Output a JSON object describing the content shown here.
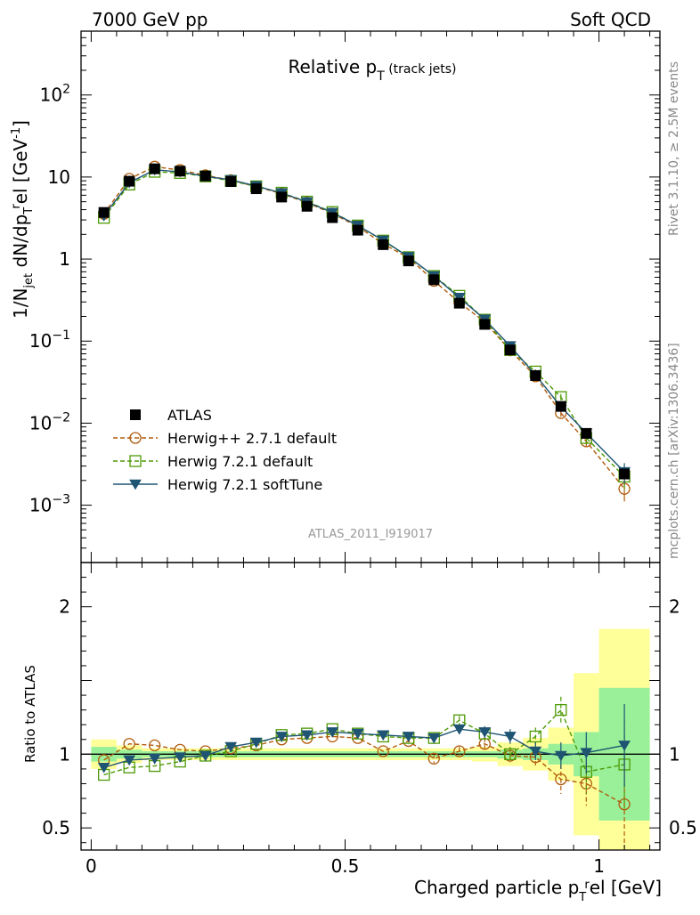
{
  "header": {
    "left": "7000 GeV pp",
    "right": "Soft QCD"
  },
  "side": {
    "rivet": "Rivet 3.1.10, ≥ 2.5M events",
    "mcplots": "mcplots.cern.ch [arXiv:1306.3436]"
  },
  "chart_data": {
    "type": "scatter",
    "title": "Relative p_T (track jets)",
    "analysis_id": "ATLAS_2011_I919017",
    "xlabel": "Charged particle p_T^rel [GeV]",
    "ylabel": "1/N_jet dN/dp_T^rel [GeV^-1]",
    "ratio_ylabel": "Ratio to ATLAS",
    "xlim": [
      -0.02,
      1.12
    ],
    "ylim_log": [
      0.0002,
      600
    ],
    "ratio_ylim": [
      0.35,
      2.3
    ],
    "x_ticks": [
      "0",
      "0.5",
      "1"
    ],
    "x_tick_values": [
      0,
      0.5,
      1
    ],
    "ratio_ticks": [
      "0.5",
      "1",
      "2"
    ],
    "ratio_tick_values": [
      0.5,
      1,
      2
    ],
    "y_ticks_log": [
      {
        "value": 0.001,
        "base": "10",
        "exp": "−3"
      },
      {
        "value": 0.01,
        "base": "10",
        "exp": "−2"
      },
      {
        "value": 0.1,
        "base": "10",
        "exp": "−1"
      },
      {
        "value": 1,
        "base": "1",
        "exp": ""
      },
      {
        "value": 10,
        "base": "10",
        "exp": ""
      },
      {
        "value": 100,
        "base": "10",
        "exp": "2"
      }
    ],
    "x": [
      0.025,
      0.075,
      0.125,
      0.175,
      0.225,
      0.275,
      0.325,
      0.375,
      0.425,
      0.475,
      0.525,
      0.575,
      0.625,
      0.675,
      0.725,
      0.775,
      0.825,
      0.875,
      0.925,
      0.975,
      1.05
    ],
    "x_edges": [
      0,
      0.05,
      0.1,
      0.15,
      0.2,
      0.25,
      0.3,
      0.35,
      0.4,
      0.45,
      0.5,
      0.55,
      0.6,
      0.65,
      0.7,
      0.75,
      0.8,
      0.85,
      0.9,
      0.95,
      1.0,
      1.1
    ],
    "data": {
      "name": "ATLAS",
      "values": [
        3.7,
        8.9,
        12.6,
        11.8,
        10.3,
        8.8,
        7.2,
        5.7,
        4.4,
        3.2,
        2.25,
        1.5,
        0.95,
        0.56,
        0.29,
        0.16,
        0.078,
        0.038,
        0.016,
        0.0075,
        0.0024
      ],
      "band_inner": [
        0.05,
        0.03,
        0.02,
        0.02,
        0.02,
        0.02,
        0.02,
        0.02,
        0.02,
        0.02,
        0.02,
        0.02,
        0.02,
        0.02,
        0.02,
        0.02,
        0.03,
        0.04,
        0.07,
        0.15,
        0.45
      ],
      "band_outer": [
        0.1,
        0.06,
        0.04,
        0.04,
        0.04,
        0.04,
        0.04,
        0.04,
        0.04,
        0.04,
        0.04,
        0.04,
        0.04,
        0.04,
        0.04,
        0.05,
        0.08,
        0.11,
        0.18,
        0.55,
        0.85
      ]
    },
    "series": [
      {
        "name": "Herwig++ 2.7.1 default",
        "color": "#b05a0a",
        "marker": "circle",
        "dash": "5,3",
        "ratio": [
          0.96,
          1.07,
          1.06,
          1.03,
          1.02,
          1.04,
          1.06,
          1.1,
          1.11,
          1.12,
          1.11,
          1.02,
          1.09,
          0.97,
          1.02,
          1.07,
          0.99,
          0.98,
          0.83,
          0.8,
          0.66
        ],
        "ratio_err": [
          0.01,
          0.01,
          0.01,
          0.01,
          0.01,
          0.01,
          0.01,
          0.01,
          0.01,
          0.01,
          0.01,
          0.01,
          0.02,
          0.03,
          0.03,
          0.04,
          0.05,
          0.07,
          0.1,
          0.15,
          0.3
        ]
      },
      {
        "name": "Herwig 7.2.1 default",
        "color": "#4e9a06",
        "marker": "square",
        "dash": "5,3",
        "ratio": [
          0.86,
          0.91,
          0.92,
          0.95,
          0.99,
          1.02,
          1.07,
          1.13,
          1.14,
          1.17,
          1.14,
          1.12,
          1.11,
          1.11,
          1.23,
          1.14,
          1.0,
          1.12,
          1.3,
          0.88,
          0.93
        ],
        "ratio_err": [
          0.01,
          0.01,
          0.01,
          0.01,
          0.01,
          0.01,
          0.01,
          0.01,
          0.01,
          0.01,
          0.01,
          0.01,
          0.02,
          0.02,
          0.03,
          0.04,
          0.05,
          0.06,
          0.09,
          0.15,
          0.3
        ]
      },
      {
        "name": "Herwig 7.2.1 softTune",
        "color": "#1f5573",
        "marker": "triangle-down",
        "dash": "",
        "ratio": [
          0.91,
          0.96,
          0.97,
          0.98,
          0.99,
          1.05,
          1.08,
          1.12,
          1.13,
          1.15,
          1.14,
          1.13,
          1.12,
          1.11,
          1.17,
          1.15,
          1.12,
          1.02,
          0.99,
          1.01,
          1.06
        ],
        "ratio_err": [
          0.01,
          0.01,
          0.01,
          0.01,
          0.01,
          0.01,
          0.01,
          0.01,
          0.01,
          0.01,
          0.01,
          0.01,
          0.02,
          0.02,
          0.03,
          0.04,
          0.05,
          0.06,
          0.09,
          0.14,
          0.28
        ]
      }
    ],
    "legend_position": "bottom-left",
    "colors": {
      "band_inner": "#99f099",
      "band_outer": "#ffff99",
      "data": "#000000"
    }
  }
}
